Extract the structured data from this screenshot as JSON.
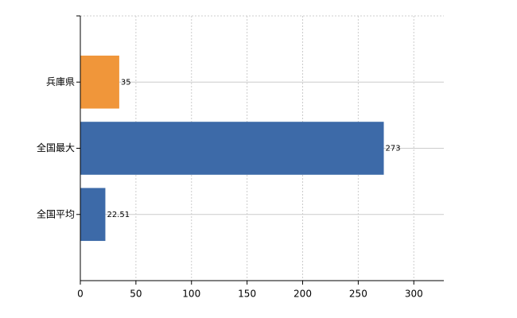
{
  "chart_data": {
    "type": "barh",
    "categories": [
      "兵庫県",
      "全国最大",
      "全国平均"
    ],
    "values": [
      35,
      273,
      22.51
    ],
    "colors": [
      "#f0963a",
      "#3d6aa8",
      "#3d6aa8"
    ],
    "xlim": [
      0,
      327
    ],
    "xticks": [
      0,
      50,
      100,
      150,
      200,
      250,
      300
    ],
    "grid": true
  }
}
